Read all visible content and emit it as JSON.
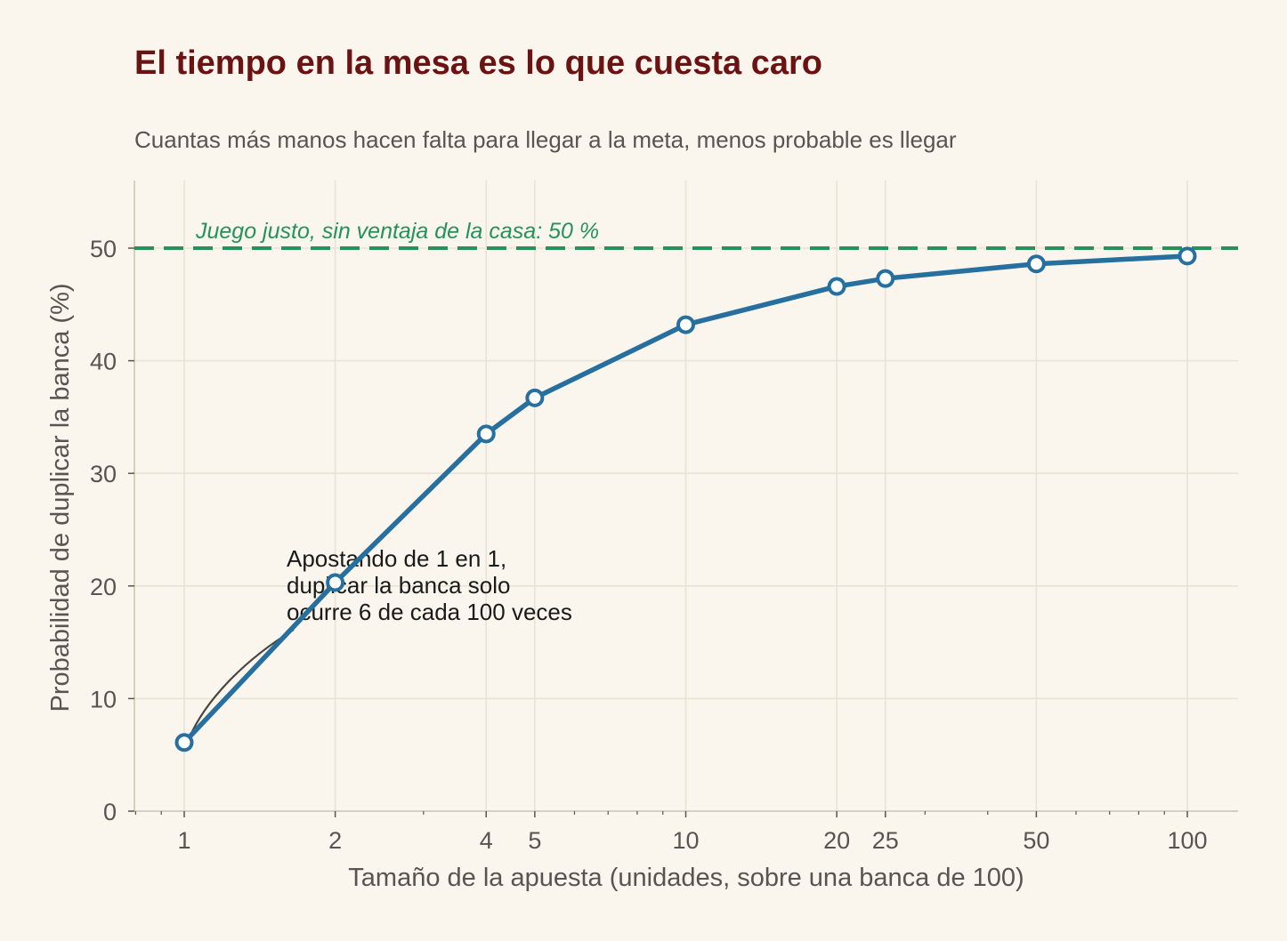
{
  "chart_data": {
    "type": "line",
    "title": "El tiempo en la mesa es lo que cuesta caro",
    "subtitle": "Cuantas más manos hacen falta para llegar a la meta, menos probable es llegar",
    "xlabel": "Tamaño de la apuesta (unidades, sobre una banca de 100)",
    "ylabel": "Probabilidad de duplicar la banca (%)",
    "x_scale": "log",
    "xlim": [
      0.72,
      120
    ],
    "ylim": [
      0,
      56
    ],
    "x_ticks": [
      1,
      2,
      4,
      5,
      10,
      20,
      25,
      50,
      100
    ],
    "x_tick_labels": [
      "1",
      "2",
      "4",
      "5",
      "10",
      "20",
      "25",
      "50",
      "100"
    ],
    "y_ticks": [
      0,
      10,
      20,
      30,
      40,
      50
    ],
    "y_tick_labels": [
      "0",
      "10",
      "20",
      "30",
      "40",
      "50"
    ],
    "grid": true,
    "series": [
      {
        "x": [
          1,
          2,
          4,
          5,
          10,
          20,
          25,
          50,
          100
        ],
        "y": [
          6.1,
          20.3,
          33.5,
          36.7,
          43.2,
          46.6,
          47.3,
          48.6,
          49.3
        ],
        "color": "#266f9e",
        "marker": "circle-hollow"
      }
    ],
    "reference_line": {
      "y": 50,
      "label": "Juego justo, sin ventaja de la casa: 50 %",
      "color": "#23935a",
      "style": "dashed"
    },
    "annotation": {
      "lines": [
        "Apostando de 1 en 1,",
        "duplicar la banca solo",
        "ocurre 6 de cada 100 veces"
      ],
      "target_x": 1,
      "target_y": 6.1
    }
  },
  "colors": {
    "background": "#faf6ee",
    "title": "#6b1212",
    "line": "#266f9e",
    "reference": "#23935a",
    "grid": "#e8e3d4",
    "text": "#5a544e"
  }
}
